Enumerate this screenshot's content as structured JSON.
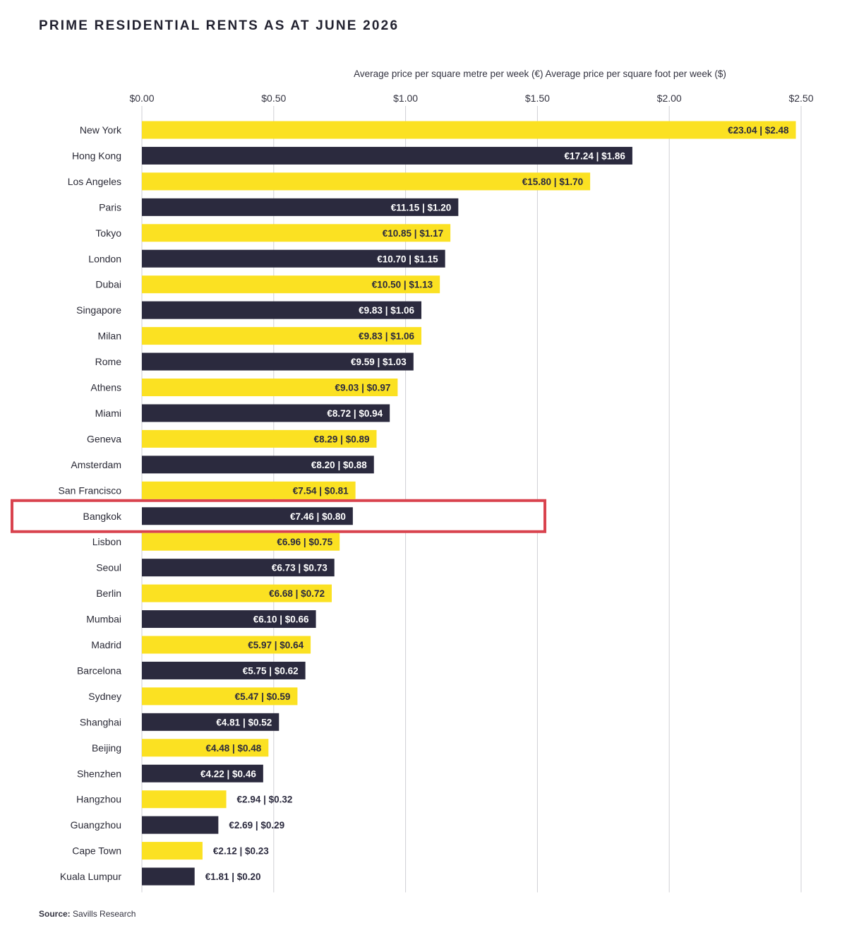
{
  "title": "PRIME RESIDENTIAL RENTS AS AT JUNE 2026",
  "axis_caption": "Average price per square metre per week (€) Average price per square foot per week ($)",
  "source": {
    "label": "Source:",
    "text": "Savills Research"
  },
  "colors": {
    "yellow": "#FBE122",
    "navy": "#2B2A3E",
    "highlight": "#D9434E",
    "grid": "#cfcfd4"
  },
  "highlight_city": "Bangkok",
  "chart_data": {
    "type": "bar",
    "orientation": "horizontal",
    "title": "PRIME RESIDENTIAL RENTS AS AT JUNE 2026",
    "xlabel": "Average price per square metre per week (€) Average price per square foot per week ($)",
    "xlim": [
      0,
      2.5
    ],
    "x_ticks": [
      "$0.00",
      "$0.50",
      "$1.00",
      "$1.50",
      "$2.00",
      "$2.50"
    ],
    "grid": true,
    "categories": [
      "New York",
      "Hong Kong",
      "Los Angeles",
      "Paris",
      "Tokyo",
      "London",
      "Dubai",
      "Singapore",
      "Milan",
      "Rome",
      "Athens",
      "Miami",
      "Geneva",
      "Amsterdam",
      "San Francisco",
      "Bangkok",
      "Lisbon",
      "Seoul",
      "Berlin",
      "Mumbai",
      "Madrid",
      "Barcelona",
      "Sydney",
      "Shanghai",
      "Beijing",
      "Shenzhen",
      "Hangzhou",
      "Guangzhou",
      "Cape Town",
      "Kuala Lumpur"
    ],
    "values_eur_sqm": [
      23.04,
      17.24,
      15.8,
      11.15,
      10.85,
      10.7,
      10.5,
      9.83,
      9.83,
      9.59,
      9.03,
      8.72,
      8.29,
      8.2,
      7.54,
      7.46,
      6.96,
      6.73,
      6.68,
      6.1,
      5.97,
      5.75,
      5.47,
      4.81,
      4.48,
      4.22,
      2.94,
      2.69,
      2.12,
      1.81
    ],
    "values_usd_sqft": [
      2.48,
      1.86,
      1.7,
      1.2,
      1.17,
      1.15,
      1.13,
      1.06,
      1.06,
      1.03,
      0.97,
      0.94,
      0.89,
      0.88,
      0.81,
      0.8,
      0.75,
      0.73,
      0.72,
      0.66,
      0.64,
      0.62,
      0.59,
      0.52,
      0.48,
      0.46,
      0.32,
      0.29,
      0.23,
      0.2
    ],
    "labels": [
      "€23.04 | $2.48",
      "€17.24 | $1.86",
      "€15.80 | $1.70",
      "€11.15 | $1.20",
      "€10.85 | $1.17",
      "€10.70 | $1.15",
      "€10.50 | $1.13",
      "€9.83 | $1.06",
      "€9.83 | $1.06",
      "€9.59 | $1.03",
      "€9.03 | $0.97",
      "€8.72 | $0.94",
      "€8.29 | $0.89",
      "€8.20 | $0.88",
      "€7.54 | $0.81",
      "€7.46 | $0.80",
      "€6.96 | $0.75",
      "€6.73 | $0.73",
      "€6.68 | $0.72",
      "€6.10 | $0.66",
      "€5.97 | $0.64",
      "€5.75 | $0.62",
      "€5.47 | $0.59",
      "€4.81 | $0.52",
      "€4.48 | $0.48",
      "€4.22 | $0.46",
      "€2.94 | $0.32",
      "€2.69 | $0.29",
      "€2.12 | $0.23",
      "€1.81 | $0.20"
    ]
  }
}
